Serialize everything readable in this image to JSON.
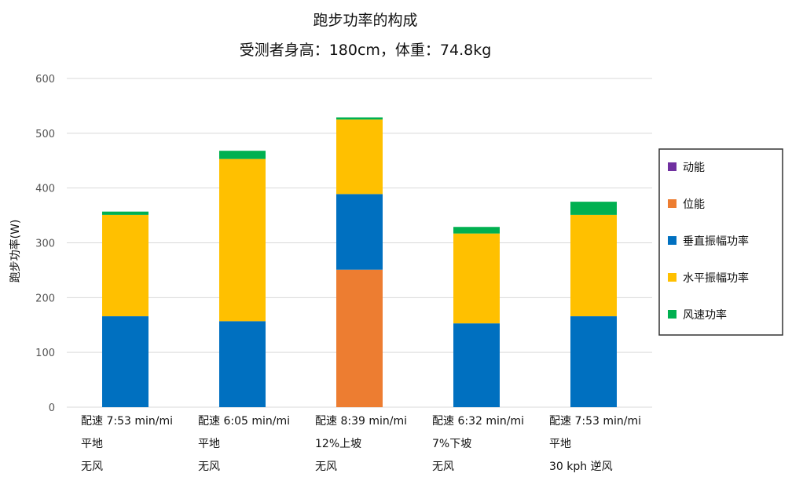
{
  "chart_data": {
    "type": "bar",
    "stacked": true,
    "title": "跑步功率的构成",
    "subtitle": "受测者身高：180cm，体重：74.8kg",
    "ylabel": "跑步功率(W)",
    "xlabel": "",
    "ylim": [
      0,
      600
    ],
    "yticks": [
      "0",
      "100",
      "200",
      "300",
      "400",
      "500",
      "600"
    ],
    "grid": true,
    "legend_position": "right",
    "categories": [
      [
        "配速 7:53 min/mi",
        "平地",
        "无风"
      ],
      [
        "配速 6:05 min/mi",
        "平地",
        "无风"
      ],
      [
        "配速 8:39 min/mi",
        "12%上坡",
        "无风"
      ],
      [
        "配速 6:32 min/mi",
        "7%下坡",
        "无风"
      ],
      [
        "配速 7:53 min/mi",
        "平地",
        "30 kph 逆风"
      ]
    ],
    "series": [
      {
        "name": "动能",
        "color": "#7030A0",
        "values": [
          0,
          0,
          0,
          0,
          0
        ]
      },
      {
        "name": "位能",
        "color": "#ED7D31",
        "values": [
          0,
          0,
          251,
          0,
          0
        ]
      },
      {
        "name": "垂直振幅功率",
        "color": "#0070C0",
        "values": [
          166,
          157,
          138,
          153,
          166
        ]
      },
      {
        "name": "水平振幅功率",
        "color": "#FFC000",
        "values": [
          185,
          296,
          136,
          164,
          185
        ]
      },
      {
        "name": "风速功率",
        "color": "#00B050",
        "values": [
          6,
          15,
          4,
          12,
          24
        ]
      }
    ]
  }
}
